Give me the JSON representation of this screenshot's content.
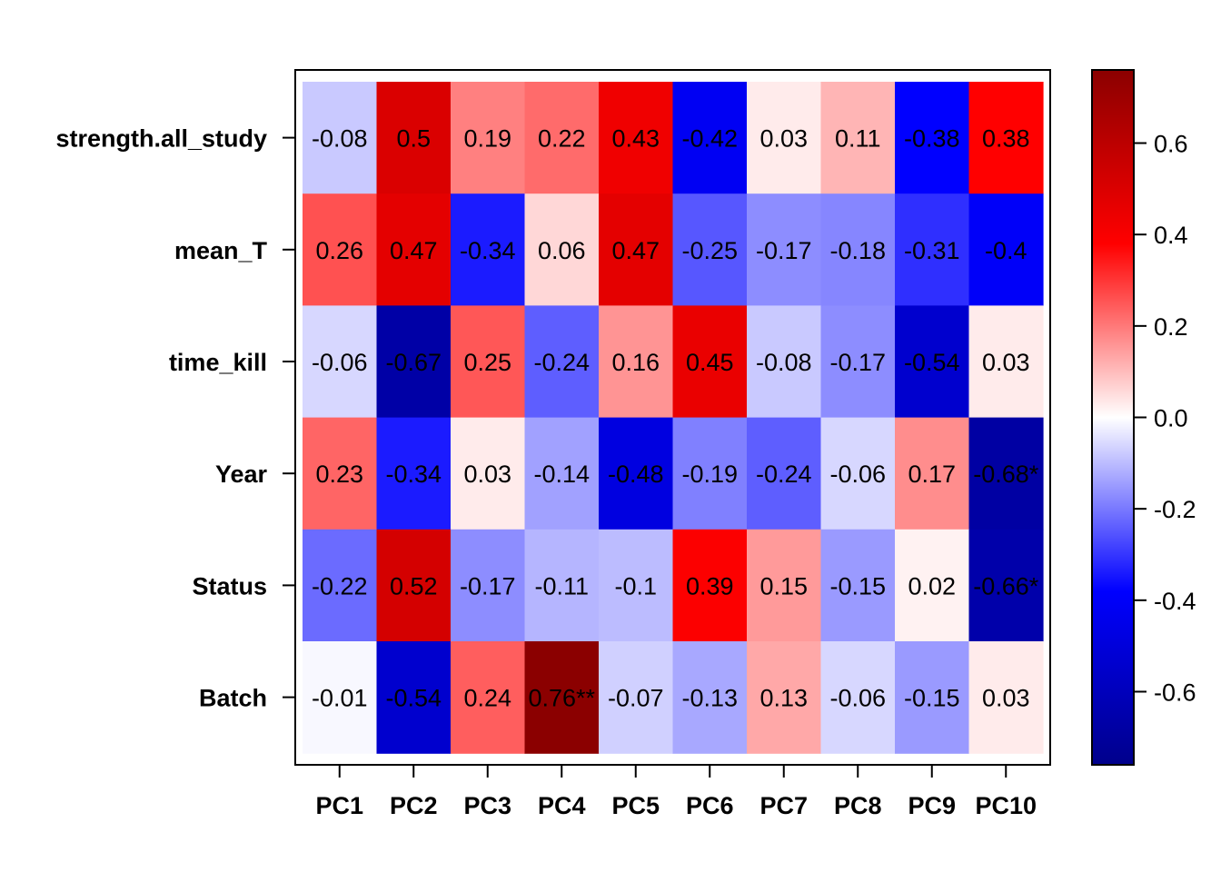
{
  "chart_data": {
    "type": "heatmap",
    "rows": [
      "strength.all_study",
      "mean_T",
      "time_kill",
      "Year",
      "Status",
      "Batch"
    ],
    "columns": [
      "PC1",
      "PC2",
      "PC3",
      "PC4",
      "PC5",
      "PC6",
      "PC7",
      "PC8",
      "PC9",
      "PC10"
    ],
    "values": [
      [
        -0.08,
        0.5,
        0.19,
        0.22,
        0.43,
        -0.42,
        0.03,
        0.11,
        -0.38,
        0.38
      ],
      [
        0.26,
        0.47,
        -0.34,
        0.06,
        0.47,
        -0.25,
        -0.17,
        -0.18,
        -0.31,
        -0.4
      ],
      [
        -0.06,
        -0.67,
        0.25,
        -0.24,
        0.16,
        0.45,
        -0.08,
        -0.17,
        -0.54,
        0.03
      ],
      [
        0.23,
        -0.34,
        0.03,
        -0.14,
        -0.48,
        -0.19,
        -0.24,
        -0.06,
        0.17,
        -0.68
      ],
      [
        -0.22,
        0.52,
        -0.17,
        -0.11,
        -0.1,
        0.39,
        0.15,
        -0.15,
        0.02,
        -0.66
      ],
      [
        -0.01,
        -0.54,
        0.24,
        0.76,
        -0.07,
        -0.13,
        0.13,
        -0.06,
        -0.15,
        0.03
      ]
    ],
    "cell_labels": [
      [
        "-0.08",
        "0.5",
        "0.19",
        "0.22",
        "0.43",
        "-0.42",
        "0.03",
        "0.11",
        "-0.38",
        "0.38"
      ],
      [
        "0.26",
        "0.47",
        "-0.34",
        "0.06",
        "0.47",
        "-0.25",
        "-0.17",
        "-0.18",
        "-0.31",
        "-0.4"
      ],
      [
        "-0.06",
        "-0.67",
        "0.25",
        "-0.24",
        "0.16",
        "0.45",
        "-0.08",
        "-0.17",
        "-0.54",
        "0.03"
      ],
      [
        "0.23",
        "-0.34",
        "0.03",
        "-0.14",
        "-0.48",
        "-0.19",
        "-0.24",
        "-0.06",
        "0.17",
        "-0.68*"
      ],
      [
        "-0.22",
        "0.52",
        "-0.17",
        "-0.11",
        "-0.1",
        "0.39",
        "0.15",
        "-0.15",
        "0.02",
        "-0.66*"
      ],
      [
        "-0.01",
        "-0.54",
        "0.24",
        "0.76**",
        "-0.07",
        "-0.13",
        "0.13",
        "-0.06",
        "-0.15",
        "0.03"
      ]
    ],
    "color_scale": {
      "range": [
        -0.76,
        0.76
      ],
      "stops": [
        "#00008B",
        "#0000FF",
        "#FFFFFF",
        "#FF0000",
        "#8B0000"
      ],
      "ticks": [
        "0.6",
        "0.4",
        "0.2",
        "0.0",
        "-0.2",
        "-0.4",
        "-0.6"
      ],
      "tick_values": [
        0.6,
        0.4,
        0.2,
        0.0,
        -0.2,
        -0.4,
        -0.6
      ]
    },
    "legend_position": "right"
  }
}
